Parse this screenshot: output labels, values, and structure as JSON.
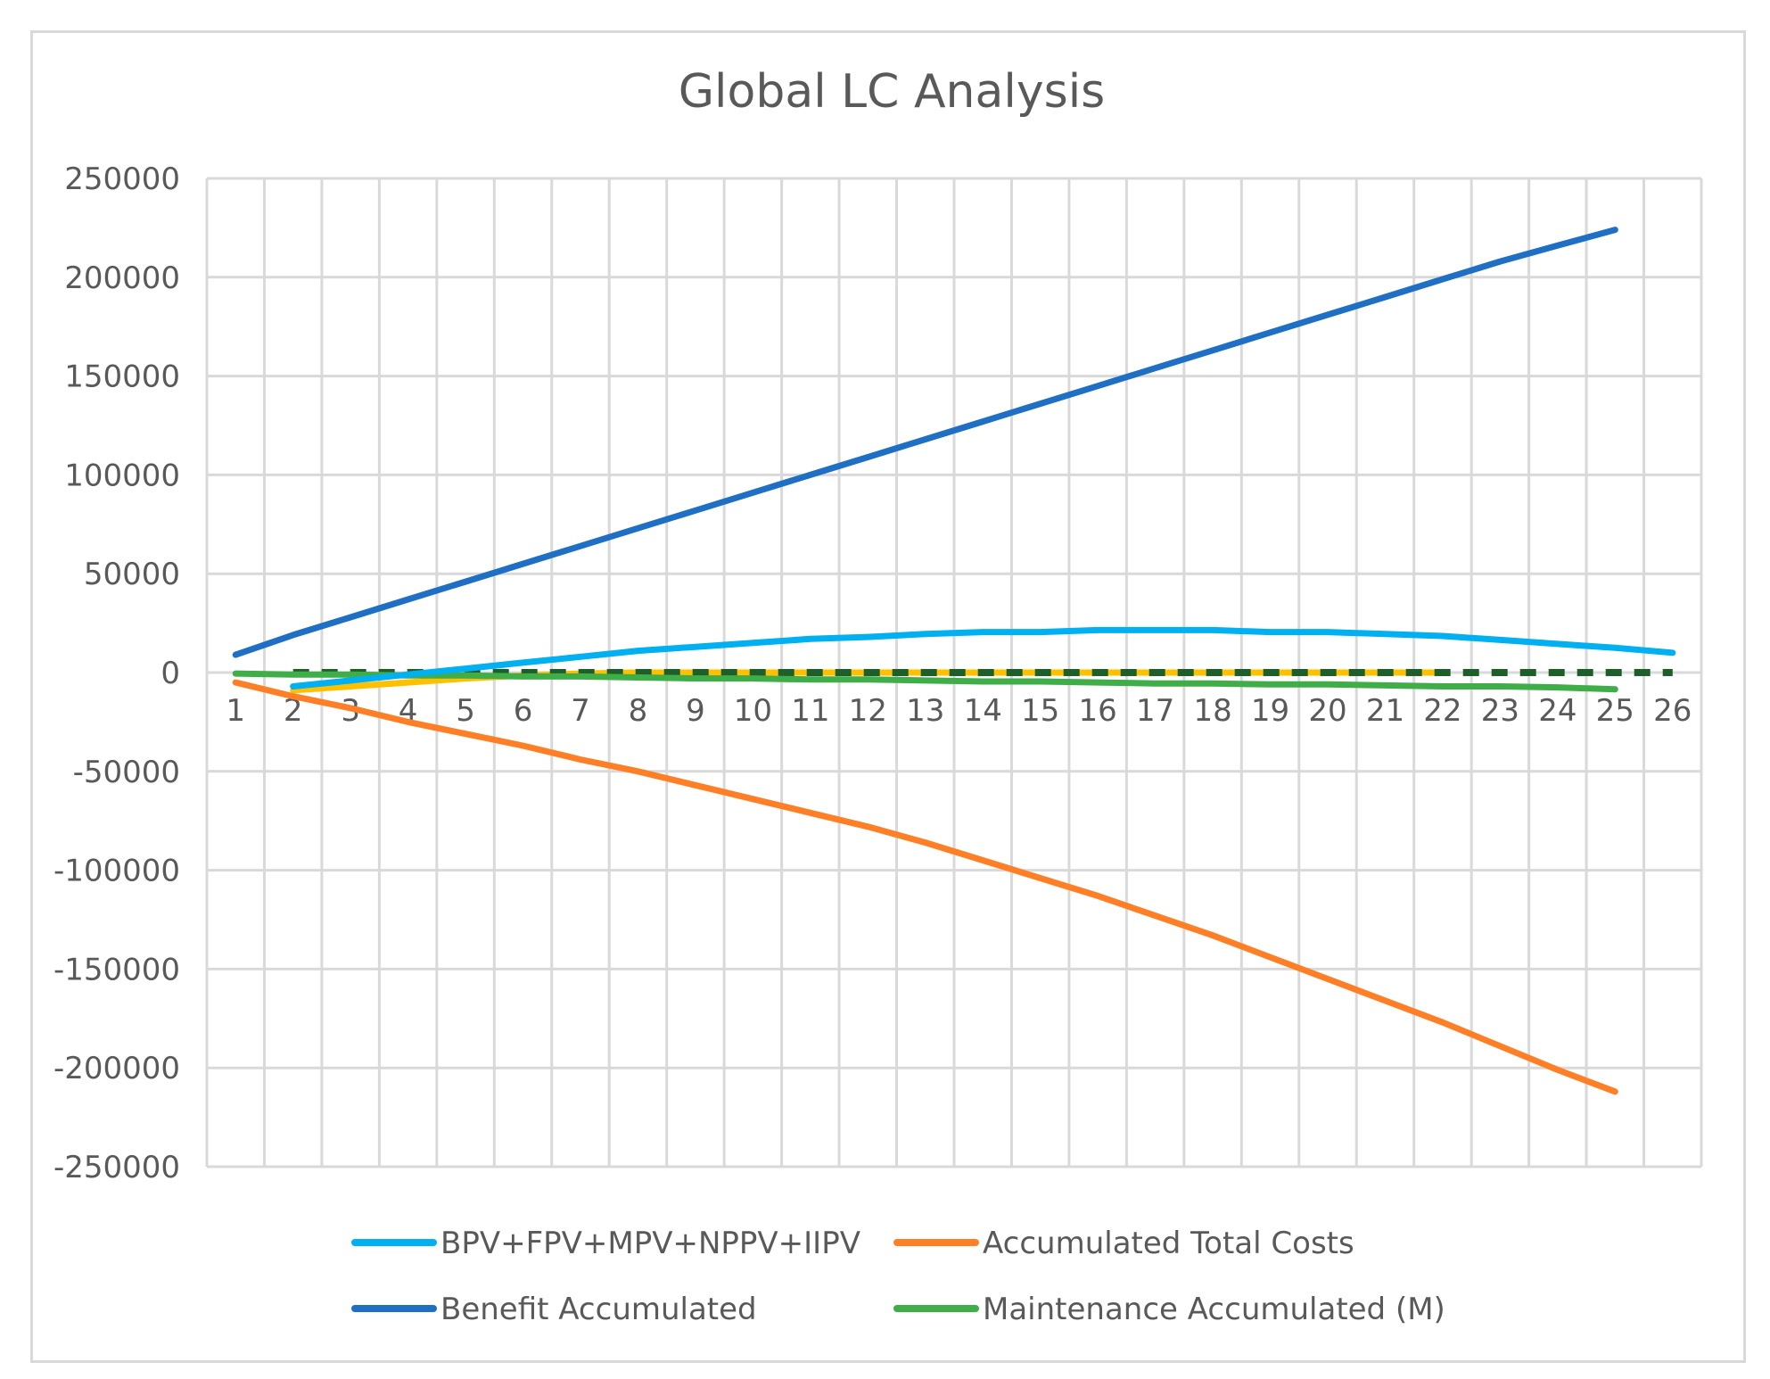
{
  "chart_data": {
    "type": "line",
    "title": "Global LC Analysis",
    "xlabel": "",
    "ylabel": "",
    "categories": [
      "1",
      "2",
      "3",
      "4",
      "5",
      "6",
      "7",
      "8",
      "9",
      "10",
      "11",
      "12",
      "13",
      "14",
      "15",
      "16",
      "17",
      "18",
      "19",
      "20",
      "21",
      "22",
      "23",
      "24",
      "25",
      "26"
    ],
    "ylim": [
      -250000,
      250000
    ],
    "yticks": [
      250000,
      200000,
      150000,
      100000,
      50000,
      0,
      -50000,
      -100000,
      -150000,
      -200000,
      -250000
    ],
    "ytick_labels": [
      "250000",
      "200000",
      "150000",
      "100000",
      "50000",
      "0",
      "-50000",
      "-100000",
      "-150000",
      "-200000",
      "-250000"
    ],
    "grid": true,
    "legend_position": "bottom",
    "series": [
      {
        "name": "BPV+FPV+MPV+NPPV+IIPV",
        "color": "#00b0f0",
        "show_in_legend": true,
        "values": [
          null,
          -7000,
          -4000,
          -1000,
          2000,
          5000,
          8000,
          11000,
          13000,
          15000,
          17000,
          18000,
          19500,
          20500,
          20500,
          21500,
          21500,
          21500,
          20500,
          20500,
          19500,
          18500,
          16500,
          14500,
          12500,
          10000
        ]
      },
      {
        "name": "Accumulated Total Costs",
        "color": "#ff7f27",
        "show_in_legend": true,
        "values": [
          -5000,
          -12000,
          -18000,
          -25000,
          -31000,
          -37000,
          -44000,
          -50000,
          -57000,
          -64000,
          -71000,
          -78000,
          -86000,
          -95000,
          -104000,
          -113000,
          -123000,
          -133000,
          -144000,
          -155000,
          -166000,
          -177000,
          -189000,
          -201000,
          -212000,
          null
        ]
      },
      {
        "name": "Benefit Accumulated",
        "color": "#1f6fc5",
        "show_in_legend": true,
        "values": [
          9000,
          19000,
          28000,
          37000,
          46000,
          55000,
          64000,
          73000,
          82000,
          91000,
          100000,
          109000,
          118000,
          127000,
          136000,
          145000,
          154000,
          163000,
          172000,
          181000,
          190000,
          199000,
          208000,
          216000,
          224000,
          null
        ]
      },
      {
        "name": "Maintenance Accumulated (M)",
        "color": "#3fae49",
        "show_in_legend": true,
        "values": [
          -500,
          -1000,
          -1000,
          -1500,
          -1500,
          -2000,
          -2000,
          -2500,
          -3000,
          -3000,
          -3500,
          -3500,
          -4000,
          -4500,
          -4500,
          -5000,
          -5500,
          -5500,
          -6000,
          -6000,
          -6500,
          -7000,
          -7000,
          -7500,
          -8500,
          null
        ]
      },
      {
        "name": "",
        "color": "#ffc000",
        "show_in_legend": false,
        "values": [
          null,
          -9000,
          -7000,
          -5000,
          -3000,
          -1500,
          -500,
          0,
          0,
          0,
          0,
          0,
          0,
          0,
          0,
          0,
          0,
          0,
          0,
          0,
          0,
          0,
          null,
          null,
          null,
          null
        ]
      },
      {
        "name": "",
        "color": "#1e5e2b",
        "dashed": true,
        "show_in_legend": false,
        "values": [
          null,
          0,
          0,
          0,
          0,
          0,
          0,
          0,
          0,
          0,
          0,
          0,
          0,
          0,
          0,
          0,
          0,
          0,
          0,
          0,
          0,
          0,
          0,
          0,
          0,
          0
        ]
      }
    ]
  }
}
